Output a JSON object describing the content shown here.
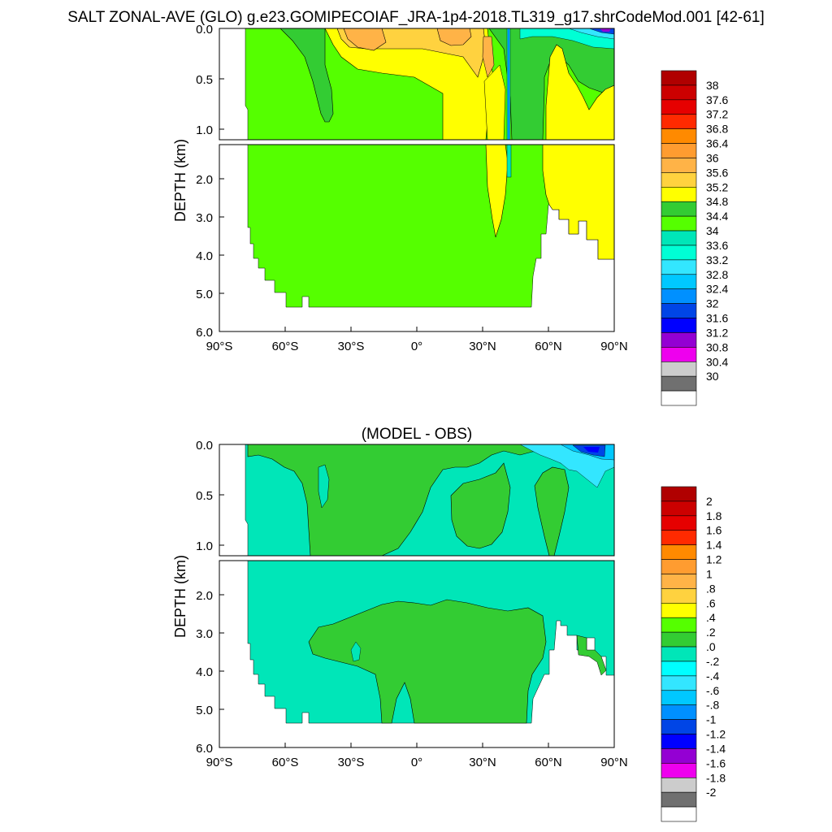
{
  "page": {
    "title": "SALT ZONAL-AVE (GLO) g.e23.GOMIPECOIAF_JRA-1p4-2018.TL319_g17.shrCodeMod.001 [42-61]"
  },
  "chart_data": [
    {
      "type": "heatmap",
      "title": "",
      "xlabel": "",
      "ylabel": "DEPTH (km)",
      "x_range": [
        -90,
        90
      ],
      "y_range": [
        0,
        6
      ],
      "x_ticks": [
        "90°S",
        "60°S",
        "30°S",
        "0°",
        "30°N",
        "60°N",
        "90°N"
      ],
      "y_ticks_upper": [
        "0.0",
        "0.5",
        "1.0"
      ],
      "y_ticks_lower": [
        "2.0",
        "3.0",
        "4.0",
        "5.0",
        "6.0"
      ],
      "colorbar": {
        "labels": [
          "38",
          "37.6",
          "37.2",
          "36.8",
          "36.4",
          "36",
          "35.6",
          "35.2",
          "34.8",
          "34.4",
          "34",
          "33.6",
          "33.2",
          "32.8",
          "32.4",
          "32",
          "31.6",
          "31.2",
          "30.8",
          "30.4",
          "30"
        ],
        "colors": [
          "#b00000",
          "#cc0000",
          "#e60000",
          "#ff2a00",
          "#ff8a00",
          "#ff9c30",
          "#ffb347",
          "#ffd23f",
          "#ffff00",
          "#33cc33",
          "#55ff00",
          "#00e6b8",
          "#00ffd5",
          "#33e6ff",
          "#00c8ff",
          "#0090ff",
          "#0045e6",
          "#0000ff",
          "#9400d3",
          "#ee00ee",
          "#cccccc",
          "#707070",
          "#ffffff"
        ]
      }
    },
    {
      "type": "heatmap",
      "title": "(MODEL - OBS)",
      "xlabel": "",
      "ylabel": "DEPTH (km)",
      "x_range": [
        -90,
        90
      ],
      "y_range": [
        0,
        6
      ],
      "x_ticks": [
        "90°S",
        "60°S",
        "30°S",
        "0°",
        "30°N",
        "60°N",
        "90°N"
      ],
      "y_ticks_upper": [
        "0.0",
        "0.5",
        "1.0"
      ],
      "y_ticks_lower": [
        "2.0",
        "3.0",
        "4.0",
        "5.0",
        "6.0"
      ],
      "colorbar": {
        "labels": [
          "2",
          "1.8",
          "1.6",
          "1.4",
          "1.2",
          "1",
          ".8",
          ".6",
          ".4",
          ".2",
          ".0",
          "-.2",
          "-.4",
          "-.6",
          "-.8",
          "-1",
          "-1.2",
          "-1.4",
          "-1.6",
          "-1.8",
          "-2"
        ],
        "colors": [
          "#b00000",
          "#cc0000",
          "#e60000",
          "#ff2a00",
          "#ff8a00",
          "#ff9c30",
          "#ffb347",
          "#ffd23f",
          "#ffff00",
          "#55ff00",
          "#33cc33",
          "#00e6b8",
          "#00ffff",
          "#33e6ff",
          "#00c8ff",
          "#0090ff",
          "#0045e6",
          "#0000ff",
          "#9400d3",
          "#ee00ee",
          "#cccccc",
          "#707070",
          "#ffffff"
        ]
      }
    }
  ]
}
